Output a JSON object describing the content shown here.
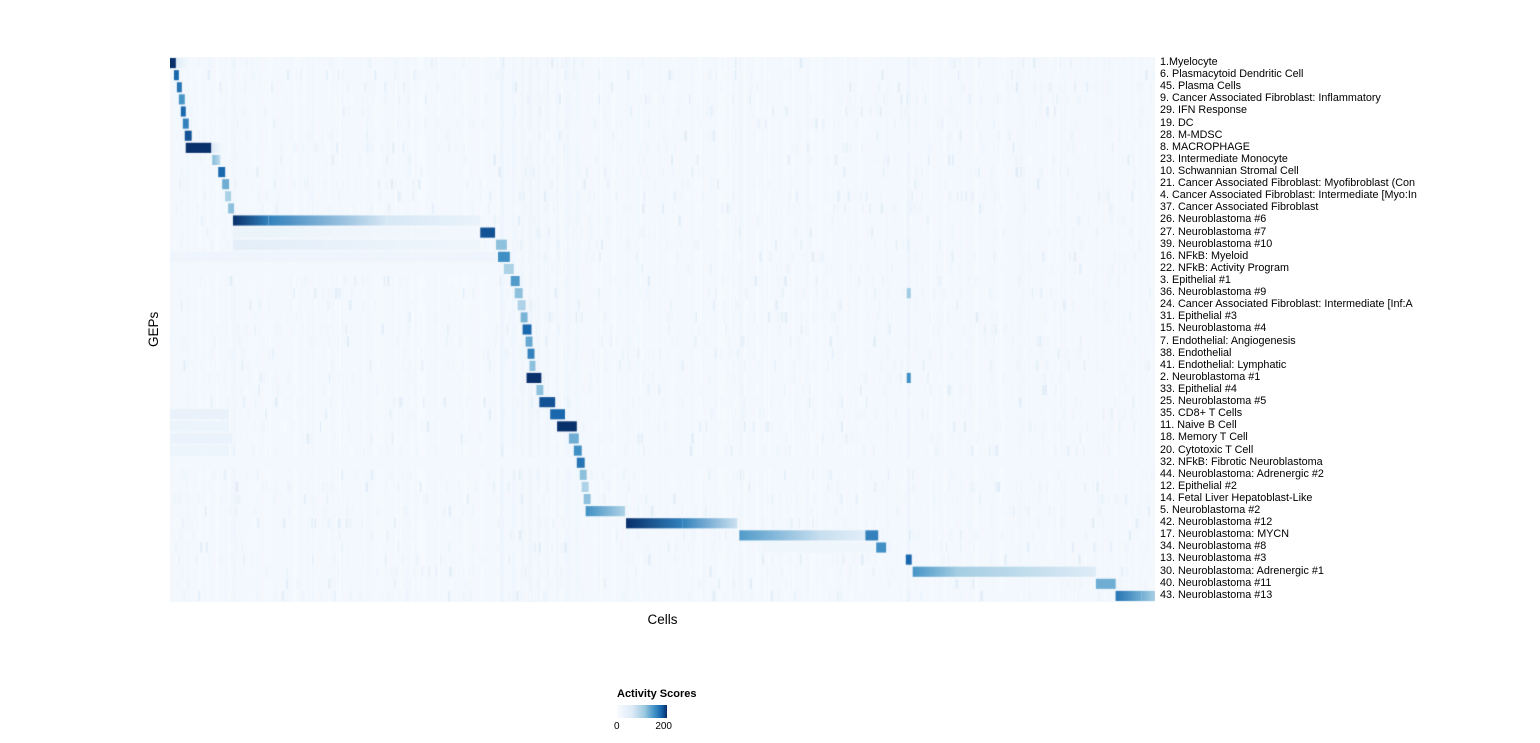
{
  "chart_data": {
    "type": "heatmap",
    "title": "",
    "xlabel": "Cells",
    "ylabel": "GEPs",
    "legend": {
      "title": "Activity Scores",
      "min_label": "0",
      "max_label": "200",
      "min": 0,
      "max": 200
    },
    "scale_max": 230,
    "background": "#f4f8fd",
    "color_stops": [
      [
        0,
        "#f7fbff"
      ],
      [
        0.3,
        "#deebf7"
      ],
      [
        0.55,
        "#9ecae1"
      ],
      [
        0.75,
        "#4292c6"
      ],
      [
        0.9,
        "#1764ab"
      ],
      [
        1,
        "#08306b"
      ]
    ],
    "column_stripes": [
      {
        "x": 0.017,
        "w": 0.003,
        "s": 18
      },
      {
        "x": 0.064,
        "w": 0.003,
        "s": 20
      },
      {
        "x": 0.335,
        "w": 0.004,
        "s": 26
      },
      {
        "x": 0.347,
        "w": 0.003,
        "s": 20
      },
      {
        "x": 0.356,
        "w": 0.003,
        "s": 22
      },
      {
        "x": 0.364,
        "w": 0.004,
        "s": 24
      },
      {
        "x": 0.373,
        "w": 0.003,
        "s": 22
      },
      {
        "x": 0.382,
        "w": 0.003,
        "s": 20
      },
      {
        "x": 0.392,
        "w": 0.003,
        "s": 20
      },
      {
        "x": 0.402,
        "w": 0.004,
        "s": 20
      },
      {
        "x": 0.412,
        "w": 0.003,
        "s": 18
      },
      {
        "x": 0.463,
        "w": 0.003,
        "s": 18
      },
      {
        "x": 0.578,
        "w": 0.003,
        "s": 22
      },
      {
        "x": 0.748,
        "w": 0.0035,
        "s": 28
      }
    ],
    "rows": [
      {
        "label": "1.Myelocyte",
        "segments": [
          [
            0,
            0.006,
            230,
            230
          ],
          [
            0.006,
            0.02,
            60,
            10
          ]
        ]
      },
      {
        "label": "6. Plasmacytoid Dendritic Cell",
        "segments": [
          [
            0.004,
            0.009,
            205,
            205
          ]
        ]
      },
      {
        "label": "45. Plasma Cells",
        "segments": [
          [
            0.007,
            0.012,
            195,
            195
          ]
        ]
      },
      {
        "label": "9. Cancer Associated Fibroblast: Inflammatory",
        "segments": [
          [
            0.009,
            0.015,
            170,
            170
          ]
        ]
      },
      {
        "label": "29. IFN Response",
        "segments": [
          [
            0.011,
            0.016,
            205,
            205
          ]
        ]
      },
      {
        "label": "19. DC",
        "segments": [
          [
            0.013,
            0.019,
            185,
            185
          ]
        ]
      },
      {
        "label": "28. M-MDSC",
        "segments": [
          [
            0.015,
            0.022,
            215,
            215
          ]
        ]
      },
      {
        "label": "8. MACROPHAGE",
        "segments": [
          [
            0.016,
            0.042,
            230,
            230
          ],
          [
            0.042,
            0.052,
            70,
            15
          ]
        ]
      },
      {
        "label": "23. Intermediate Monocyte",
        "segments": [
          [
            0.043,
            0.051,
            140,
            95
          ]
        ]
      },
      {
        "label": "10. Schwannian Stromal Cell",
        "segments": [
          [
            0.049,
            0.056,
            205,
            205
          ]
        ]
      },
      {
        "label": "21. Cancer Associated Fibroblast: Myofibroblast (Con",
        "segments": [
          [
            0.053,
            0.06,
            150,
            150
          ]
        ]
      },
      {
        "label": "4. Cancer Associated Fibroblast: Intermediate [Myo:In",
        "segments": [
          [
            0.056,
            0.062,
            115,
            115
          ]
        ]
      },
      {
        "label": "37. Cancer Associated Fibroblast",
        "segments": [
          [
            0.059,
            0.065,
            135,
            135
          ]
        ]
      },
      {
        "label": "26. Neuroblastoma #6",
        "segments": [
          [
            0.064,
            0.1,
            230,
            185
          ],
          [
            0.1,
            0.22,
            185,
            75
          ],
          [
            0.22,
            0.315,
            75,
            35
          ]
        ]
      },
      {
        "label": "27. Neuroblastoma #7",
        "segments": [
          [
            0.064,
            0.315,
            32,
            14
          ],
          [
            0.315,
            0.33,
            215,
            215
          ]
        ]
      },
      {
        "label": "39. Neuroblastoma #10",
        "segments": [
          [
            0.064,
            0.315,
            55,
            22
          ],
          [
            0.331,
            0.342,
            135,
            135
          ]
        ]
      },
      {
        "label": "16. NFkB: Myeloid",
        "segments": [
          [
            0,
            0.332,
            24,
            24
          ],
          [
            0.333,
            0.345,
            175,
            175
          ]
        ]
      },
      {
        "label": "22. NFkB: Activity Program",
        "segments": [
          [
            0,
            0.34,
            14,
            14
          ],
          [
            0.339,
            0.349,
            115,
            115
          ]
        ]
      },
      {
        "label": "3. Epithelial #1",
        "segments": [
          [
            0.346,
            0.355,
            165,
            165
          ]
        ]
      },
      {
        "label": "36. Neuroblastoma #9",
        "segments": [
          [
            0.35,
            0.358,
            135,
            135
          ],
          [
            0.748,
            0.752,
            125,
            125
          ]
        ]
      },
      {
        "label": "24. Cancer Associated Fibroblast: Intermediate [Inf:A",
        "segments": [
          [
            0.353,
            0.361,
            112,
            112
          ]
        ]
      },
      {
        "label": "31. Epithelial #3",
        "segments": [
          [
            0.356,
            0.363,
            145,
            145
          ]
        ]
      },
      {
        "label": "15. Neuroblastoma #4",
        "segments": [
          [
            0.358,
            0.367,
            205,
            205
          ]
        ]
      },
      {
        "label": "7. Endothelial: Angiogenesis",
        "segments": [
          [
            0.361,
            0.368,
            155,
            155
          ]
        ]
      },
      {
        "label": "38. Endothelial",
        "segments": [
          [
            0.363,
            0.37,
            185,
            185
          ]
        ]
      },
      {
        "label": "41. Endothelial: Lymphatic",
        "segments": [
          [
            0.365,
            0.371,
            135,
            135
          ]
        ]
      },
      {
        "label": "2. Neuroblastoma #1",
        "segments": [
          [
            0.362,
            0.377,
            230,
            230
          ],
          [
            0.748,
            0.752,
            175,
            175
          ]
        ]
      },
      {
        "label": "33. Epithelial #4",
        "segments": [
          [
            0.372,
            0.379,
            135,
            135
          ]
        ]
      },
      {
        "label": "25. Neuroblastoma #5",
        "segments": [
          [
            0.375,
            0.391,
            215,
            215
          ]
        ]
      },
      {
        "label": "35. CD8+ T Cells",
        "segments": [
          [
            0.386,
            0.401,
            205,
            205
          ],
          [
            0,
            0.06,
            40,
            40
          ]
        ]
      },
      {
        "label": "11. Naive B Cell",
        "segments": [
          [
            0.393,
            0.413,
            230,
            230
          ],
          [
            0,
            0.06,
            32,
            32
          ]
        ]
      },
      {
        "label": "18. Memory T Cell",
        "segments": [
          [
            0.405,
            0.415,
            150,
            150
          ],
          [
            0,
            0.06,
            36,
            36
          ]
        ]
      },
      {
        "label": "20. Cytotoxic T Cell",
        "segments": [
          [
            0.41,
            0.418,
            175,
            175
          ],
          [
            0,
            0.06,
            30,
            30
          ]
        ]
      },
      {
        "label": "32. NFkB: Fibrotic Neuroblastoma",
        "segments": [
          [
            0,
            1,
            13,
            13
          ],
          [
            0.413,
            0.421,
            195,
            195
          ]
        ]
      },
      {
        "label": "44. Neuroblastoma: Adrenergic #2",
        "segments": [
          [
            0.416,
            0.423,
            135,
            135
          ]
        ]
      },
      {
        "label": "12. Epithelial #2",
        "segments": [
          [
            0.418,
            0.425,
            112,
            112
          ]
        ]
      },
      {
        "label": "14. Fetal Liver Hepatoblast-Like",
        "segments": [
          [
            0.42,
            0.427,
            135,
            135
          ]
        ]
      },
      {
        "label": "5. Neuroblastoma #2",
        "segments": [
          [
            0.422,
            0.462,
            175,
            110
          ]
        ]
      },
      {
        "label": "42. Neuroblastoma #12",
        "segments": [
          [
            0.463,
            0.52,
            230,
            185
          ],
          [
            0.52,
            0.576,
            185,
            85
          ]
        ]
      },
      {
        "label": "17. Neuroblastoma: MYCN",
        "segments": [
          [
            0.578,
            0.66,
            165,
            90
          ],
          [
            0.66,
            0.706,
            90,
            55
          ],
          [
            0.706,
            0.719,
            185,
            185
          ]
        ]
      },
      {
        "label": "34. Neuroblastoma #8",
        "segments": [
          [
            0.6,
            0.716,
            22,
            22
          ],
          [
            0.717,
            0.727,
            175,
            175
          ]
        ]
      },
      {
        "label": "13. Neuroblastoma #3",
        "segments": [
          [
            0.747,
            0.753,
            205,
            205
          ]
        ]
      },
      {
        "label": "30. Neuroblastoma: Adrenergic #1",
        "segments": [
          [
            0.754,
            0.8,
            170,
            120
          ],
          [
            0.8,
            0.94,
            120,
            65
          ]
        ]
      },
      {
        "label": "40. Neuroblastoma #11",
        "segments": [
          [
            0.94,
            0.96,
            150,
            150
          ]
        ]
      },
      {
        "label": "43. Neuroblastoma #13",
        "segments": [
          [
            0.96,
            0.986,
            195,
            150
          ],
          [
            0.986,
            1,
            150,
            115
          ]
        ]
      }
    ]
  }
}
